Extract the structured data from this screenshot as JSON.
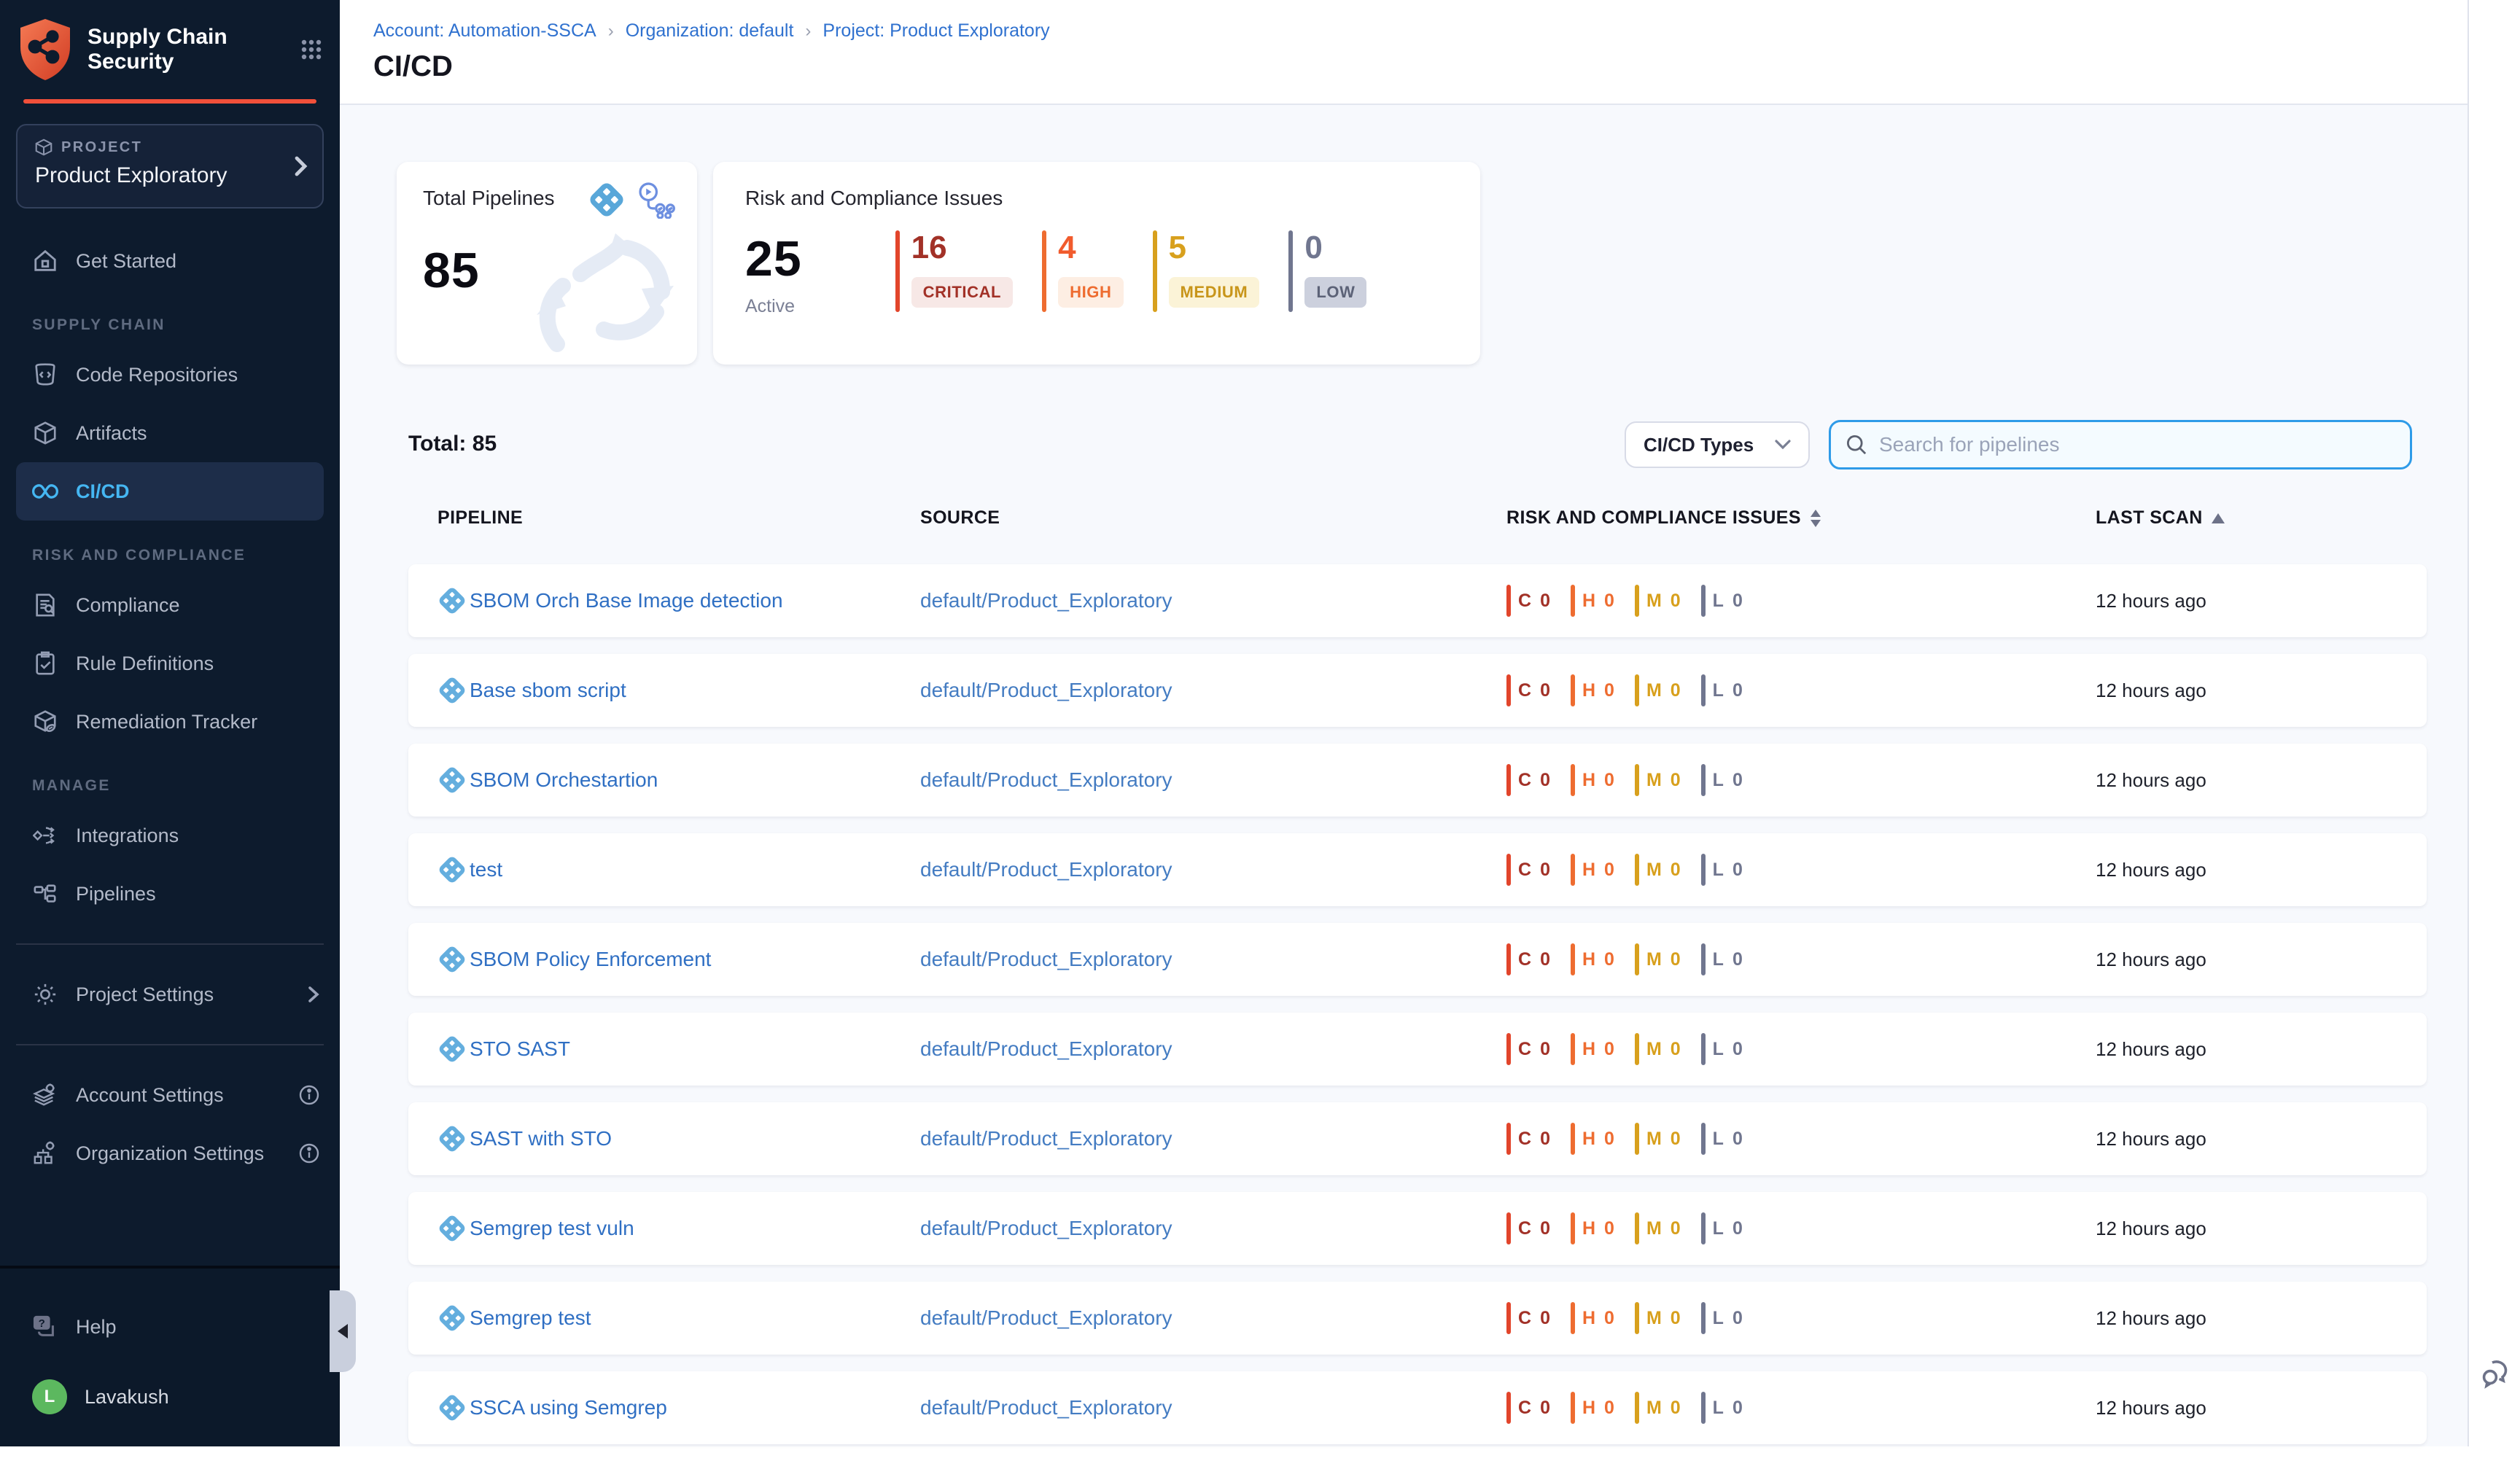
{
  "app": {
    "accent_orange": "#f1503a",
    "sidebar_bg": "#0d1b2d",
    "active_blue": "#45b6f2",
    "content_bg": "#f7f9fd"
  },
  "sidebar": {
    "title_line1": "Supply Chain",
    "title_line2": "Security",
    "project_label": "PROJECT",
    "project_name": "Product Exploratory",
    "get_started": "Get Started",
    "sections": [
      {
        "label": "SUPPLY CHAIN",
        "items": [
          {
            "label": "Code Repositories"
          },
          {
            "label": "Artifacts"
          },
          {
            "label": "CI/CD",
            "active": true
          }
        ]
      },
      {
        "label": "RISK AND COMPLIANCE",
        "items": [
          {
            "label": "Compliance"
          },
          {
            "label": "Rule Definitions"
          },
          {
            "label": "Remediation Tracker"
          }
        ]
      },
      {
        "label": "MANAGE",
        "items": [
          {
            "label": "Integrations"
          },
          {
            "label": "Pipelines"
          }
        ]
      }
    ],
    "project_settings": "Project Settings",
    "account_settings": "Account Settings",
    "organization_settings": "Organization Settings",
    "help": "Help",
    "user": {
      "initial": "L",
      "name": "Lavakush"
    }
  },
  "header": {
    "breadcrumb": [
      "Account: Automation-SSCA",
      "Organization: default",
      "Project: Product Exploratory"
    ],
    "separator": "›",
    "title": "CI/CD"
  },
  "summary": {
    "total_pipelines": {
      "title": "Total Pipelines",
      "value": "85"
    },
    "risk": {
      "title": "Risk and Compliance Issues",
      "active_value": "25",
      "active_label": "Active",
      "severities": [
        {
          "count": "16",
          "label": "CRITICAL",
          "text_color": "#a23127",
          "bar_color": "#e2452b",
          "badge_bg": "#f7e8e6",
          "badge_text": "#a23127"
        },
        {
          "count": "4",
          "label": "HIGH",
          "text_color": "#f15b2d",
          "bar_color": "#ee6c30",
          "badge_bg": "#fdeee3",
          "badge_text": "#ee6c30"
        },
        {
          "count": "5",
          "label": "MEDIUM",
          "text_color": "#d8a01d",
          "bar_color": "#d8a01d",
          "badge_bg": "#fbf3d7",
          "badge_text": "#c8951a"
        },
        {
          "count": "0",
          "label": "LOW",
          "text_color": "#70768f",
          "bar_color": "#70768f",
          "badge_bg": "#ccd0dd",
          "badge_text": "#5c6277"
        }
      ]
    }
  },
  "toolbar": {
    "total_label": "Total: 85",
    "type_filter": "CI/CD Types",
    "search_placeholder": "Search for pipelines"
  },
  "table": {
    "columns": [
      "PIPELINE",
      "SOURCE",
      "RISK AND COMPLIANCE ISSUES",
      "LAST SCAN"
    ],
    "risk_cell": [
      {
        "letter": "C",
        "count": "0",
        "text_color": "#a23127",
        "bar_color": "#e2452b"
      },
      {
        "letter": "H",
        "count": "0",
        "text_color": "#ee6c30",
        "bar_color": "#ee6c30"
      },
      {
        "letter": "M",
        "count": "0",
        "text_color": "#d8a01d",
        "bar_color": "#d8a01d"
      },
      {
        "letter": "L",
        "count": "0",
        "text_color": "#70768f",
        "bar_color": "#70768f"
      }
    ],
    "rows": [
      {
        "name": "SBOM Orch Base Image detection",
        "source": "default/Product_Exploratory",
        "last_scan": "12 hours ago"
      },
      {
        "name": "Base sbom script",
        "source": "default/Product_Exploratory",
        "last_scan": "12 hours ago"
      },
      {
        "name": "SBOM Orchestartion",
        "source": "default/Product_Exploratory",
        "last_scan": "12 hours ago"
      },
      {
        "name": "test",
        "source": "default/Product_Exploratory",
        "last_scan": "12 hours ago"
      },
      {
        "name": "SBOM Policy Enforcement",
        "source": "default/Product_Exploratory",
        "last_scan": "12 hours ago"
      },
      {
        "name": "STO SAST",
        "source": "default/Product_Exploratory",
        "last_scan": "12 hours ago"
      },
      {
        "name": "SAST with STO",
        "source": "default/Product_Exploratory",
        "last_scan": "12 hours ago"
      },
      {
        "name": "Semgrep test vuln",
        "source": "default/Product_Exploratory",
        "last_scan": "12 hours ago"
      },
      {
        "name": "Semgrep test",
        "source": "default/Product_Exploratory",
        "last_scan": "12 hours ago"
      },
      {
        "name": "SSCA using Semgrep",
        "source": "default/Product_Exploratory",
        "last_scan": "12 hours ago"
      }
    ]
  }
}
